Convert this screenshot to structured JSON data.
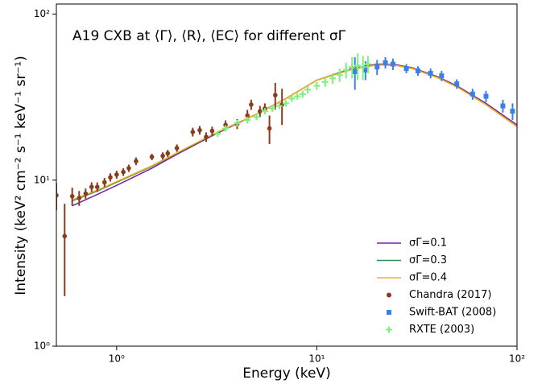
{
  "chart_data": {
    "type": "line",
    "title": "A19 CXB at ⟨Γ⟩, ⟨R⟩, ⟨EC⟩ for different σΓ",
    "x_label": "Energy (keV)",
    "y_label": "Intensity (keV² cm⁻² s⁻¹ keV⁻¹ sr⁻¹)",
    "xscale": "log",
    "yscale": "log",
    "xlim": [
      0.5,
      100
    ],
    "ylim": [
      1,
      115
    ],
    "xticks": [
      {
        "value": 1,
        "label": "10⁰"
      },
      {
        "value": 10,
        "label": "10¹"
      },
      {
        "value": 100,
        "label": "10²"
      }
    ],
    "yticks": [
      {
        "value": 1,
        "label": "10⁰"
      },
      {
        "value": 10,
        "label": "10¹"
      },
      {
        "value": 100,
        "label": "10²"
      }
    ],
    "legend": "lower right",
    "series": [
      {
        "name": "σΓ=0.1",
        "type": "line",
        "color": "#7b1fa2",
        "x": [
          0.6,
          0.8,
          1,
          1.5,
          2,
          3,
          5,
          7,
          10,
          15,
          20,
          25,
          30,
          40,
          50,
          70,
          100
        ],
        "values": [
          7.0,
          8.2,
          9.3,
          11.8,
          14.3,
          18.5,
          25,
          31,
          40,
          47,
          50,
          49.5,
          47.5,
          42,
          37,
          29,
          21.5
        ]
      },
      {
        "name": "σΓ=0.3",
        "type": "line",
        "color": "#2e8b57",
        "x": [
          0.6,
          0.8,
          1,
          1.5,
          2,
          3,
          5,
          7,
          10,
          15,
          20,
          25,
          30,
          40,
          50,
          70,
          100
        ],
        "values": [
          7.5,
          8.6,
          9.7,
          12.1,
          14.5,
          18.7,
          25,
          31,
          40,
          46.5,
          49.5,
          49,
          47,
          41.5,
          36.5,
          28.5,
          21
        ]
      },
      {
        "name": "σΓ=0.4",
        "type": "line",
        "color": "#f0b01e",
        "x": [
          0.6,
          0.8,
          1,
          1.5,
          2,
          3,
          5,
          7,
          10,
          15,
          20,
          25,
          30,
          40,
          50,
          70,
          100
        ],
        "values": [
          7.6,
          8.7,
          9.8,
          12.2,
          14.6,
          18.8,
          25,
          31,
          40,
          46.5,
          49.5,
          49,
          47,
          41.5,
          36.5,
          28.5,
          21
        ]
      },
      {
        "name": "Chandra (2017)",
        "type": "scatter",
        "marker": "circle",
        "color": "#8b3a1e",
        "x": [
          0.5,
          0.55,
          0.6,
          0.65,
          0.7,
          0.75,
          0.8,
          0.87,
          0.93,
          1.0,
          1.08,
          1.15,
          1.25,
          1.5,
          1.7,
          1.8,
          2.0,
          2.4,
          2.6,
          2.8,
          3.0,
          3.5,
          4.0,
          4.5,
          4.7,
          5.2,
          5.5,
          5.8,
          6.2,
          6.7
        ],
        "values": [
          8.1,
          4.6,
          8.0,
          7.8,
          8.3,
          9.1,
          9.1,
          9.7,
          10.4,
          10.8,
          11.2,
          11.8,
          13.0,
          13.8,
          14.0,
          14.5,
          15.6,
          19.5,
          20.0,
          18.2,
          19.8,
          21.5,
          21.8,
          24.5,
          28.5,
          26,
          27,
          20.5,
          32.5,
          28.5
        ],
        "errors": [
          1.5,
          2.6,
          1.0,
          0.8,
          0.6,
          0.6,
          0.6,
          0.6,
          0.6,
          0.6,
          0.6,
          0.6,
          0.7,
          0.6,
          0.7,
          0.7,
          0.8,
          1.2,
          1.2,
          1.2,
          1.2,
          1.4,
          1.5,
          2,
          2,
          2,
          2,
          4,
          6,
          7
        ]
      },
      {
        "name": "Swift-BAT (2008)",
        "type": "scatter",
        "marker": "square",
        "color": "#3b7fe8",
        "x": [
          15.5,
          17.5,
          20,
          22,
          24,
          28,
          32,
          37,
          42,
          50,
          60,
          70,
          85,
          95
        ],
        "values": [
          45,
          46,
          48,
          51,
          50,
          47,
          45.5,
          44,
          42.5,
          38,
          33,
          32,
          28,
          26
        ],
        "errors": [
          10,
          6,
          5,
          4,
          4,
          3,
          3,
          3,
          3,
          2.5,
          2.5,
          2.5,
          2.5,
          3
        ]
      },
      {
        "name": "RXTE (2003)",
        "type": "scatter",
        "marker": "plus",
        "color": "#7ef07e",
        "x": [
          3.2,
          3.5,
          4,
          4.5,
          5,
          5.5,
          6,
          6.5,
          7,
          7.5,
          8,
          8.5,
          9,
          10,
          11,
          12,
          13,
          14,
          15,
          16,
          17,
          18
        ],
        "values": [
          19,
          20.5,
          22,
          23,
          24,
          26,
          27,
          28,
          29,
          31,
          32,
          33,
          35,
          37,
          39,
          41,
          43,
          46,
          48,
          49,
          48,
          50
        ],
        "errors": [
          0.8,
          0.8,
          0.9,
          1,
          1,
          1,
          1.2,
          1.2,
          1.3,
          1.4,
          1.5,
          1.6,
          1.8,
          2,
          2.5,
          3,
          4,
          5,
          7,
          9,
          8,
          6
        ]
      }
    ]
  }
}
